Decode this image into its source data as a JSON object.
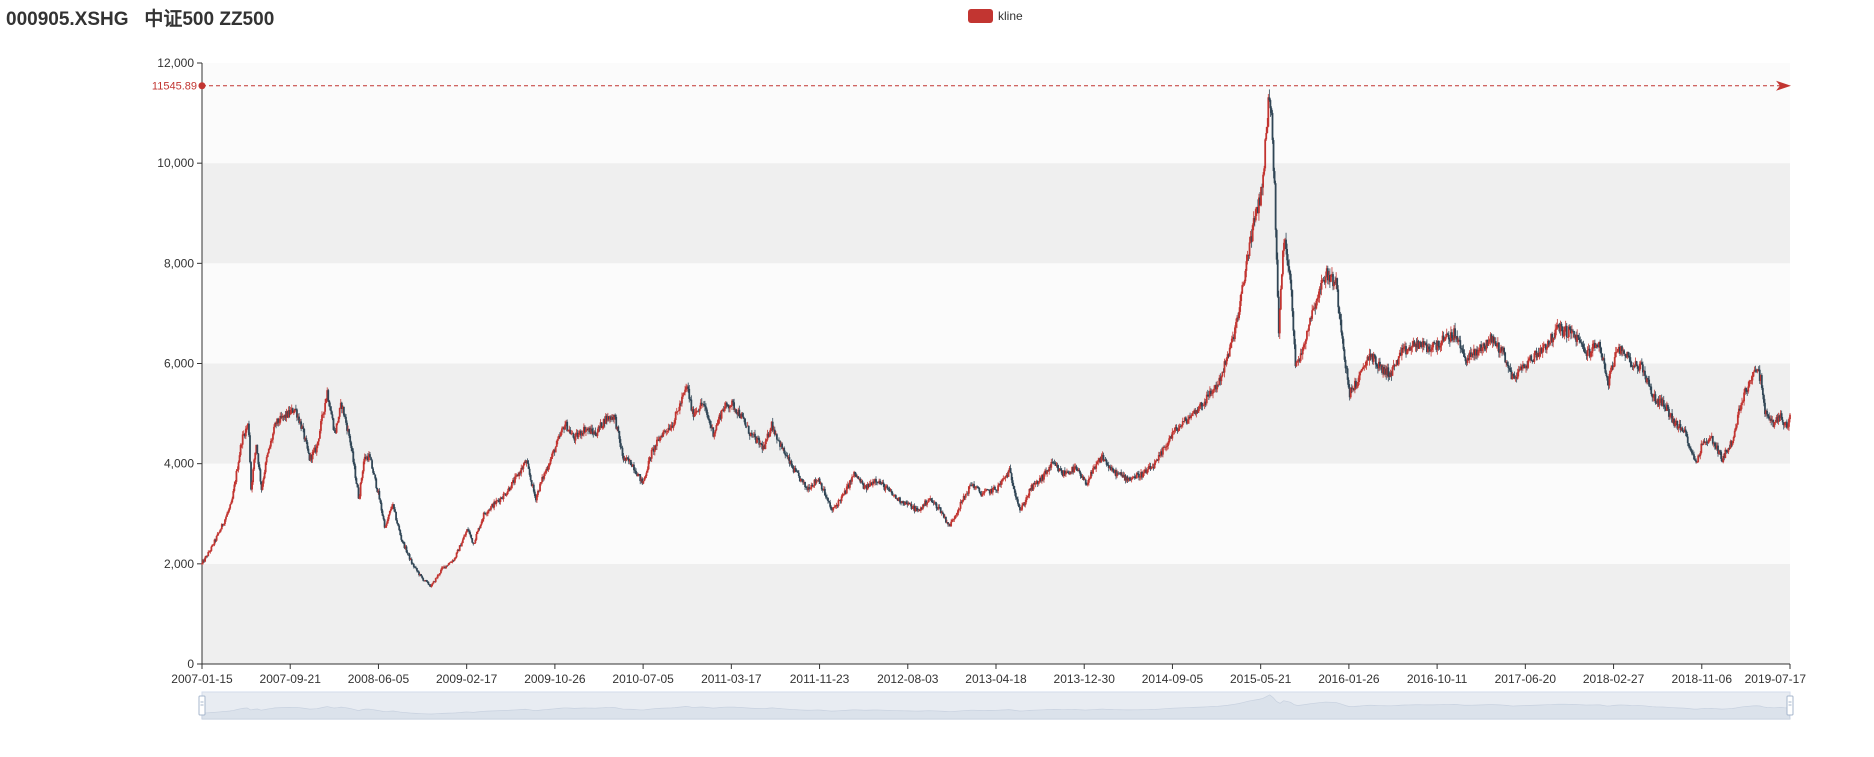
{
  "chart_data": {
    "type": "candlestick",
    "title": "000905.XSHG   中证500 ZZ500",
    "legend": {
      "entries": [
        "kline"
      ],
      "position": "top-center"
    },
    "ylim": [
      0,
      12000
    ],
    "y_ticks": [
      0,
      2000,
      4000,
      6000,
      8000,
      10000,
      12000
    ],
    "y_tick_labels": [
      "0",
      "2,000",
      "4,000",
      "6,000",
      "8,000",
      "10,000",
      "12,000"
    ],
    "x_range": [
      "2007-01-15",
      "2019-07-17"
    ],
    "x_tick_labels": [
      "2007-01-15",
      "2007-09-21",
      "2008-06-05",
      "2009-02-17",
      "2009-10-26",
      "2010-07-05",
      "2011-03-17",
      "2011-11-23",
      "2012-08-03",
      "2013-04-18",
      "2013-12-30",
      "2014-09-05",
      "2015-05-21",
      "2016-01-26",
      "2016-10-11",
      "2017-06-20",
      "2018-02-27",
      "2018-11-06",
      "2019-07-17"
    ],
    "max_markline": {
      "value": 11545.89,
      "label": "11545.89"
    },
    "grid": "horizontal-bands",
    "colors": {
      "up": "#c23531",
      "down": "#314656",
      "band": "#efefef",
      "markline": "#c23531",
      "slider_fill": "#d6dde8",
      "slider_handle": "#a7b7cc"
    },
    "datazoom": {
      "type": "slider",
      "range": [
        "2007-01-15",
        "2019-07-17"
      ]
    },
    "close_series": [
      [
        "2007-01-15",
        2000
      ],
      [
        "2007-02-10",
        2300
      ],
      [
        "2007-03-10",
        2700
      ],
      [
        "2007-04-10",
        3200
      ],
      [
        "2007-05-10",
        4500
      ],
      [
        "2007-05-29",
        4800
      ],
      [
        "2007-06-05",
        3500
      ],
      [
        "2007-06-20",
        4400
      ],
      [
        "2007-07-05",
        3500
      ],
      [
        "2007-07-20",
        4100
      ],
      [
        "2007-08-15",
        4800
      ],
      [
        "2007-09-21",
        5000
      ],
      [
        "2007-10-10",
        5100
      ],
      [
        "2007-10-30",
        4700
      ],
      [
        "2007-11-20",
        4100
      ],
      [
        "2007-12-10",
        4300
      ],
      [
        "2008-01-10",
        5450
      ],
      [
        "2008-02-01",
        4600
      ],
      [
        "2008-02-20",
        5200
      ],
      [
        "2008-03-15",
        4500
      ],
      [
        "2008-04-10",
        3300
      ],
      [
        "2008-04-25",
        4100
      ],
      [
        "2008-05-10",
        4150
      ],
      [
        "2008-06-05",
        3400
      ],
      [
        "2008-06-25",
        2700
      ],
      [
        "2008-07-15",
        3200
      ],
      [
        "2008-08-10",
        2500
      ],
      [
        "2008-09-10",
        2000
      ],
      [
        "2008-10-10",
        1700
      ],
      [
        "2008-11-04",
        1550
      ],
      [
        "2008-12-05",
        1900
      ],
      [
        "2009-01-10",
        2100
      ],
      [
        "2009-02-17",
        2700
      ],
      [
        "2009-03-05",
        2400
      ],
      [
        "2009-04-05",
        3000
      ],
      [
        "2009-05-05",
        3200
      ],
      [
        "2009-06-05",
        3400
      ],
      [
        "2009-07-05",
        3700
      ],
      [
        "2009-08-04",
        4050
      ],
      [
        "2009-08-31",
        3300
      ],
      [
        "2009-09-20",
        3700
      ],
      [
        "2009-10-26",
        4300
      ],
      [
        "2009-11-24",
        4800
      ],
      [
        "2009-12-20",
        4500
      ],
      [
        "2010-01-20",
        4700
      ],
      [
        "2010-02-20",
        4600
      ],
      [
        "2010-03-20",
        4900
      ],
      [
        "2010-04-15",
        4950
      ],
      [
        "2010-05-10",
        4100
      ],
      [
        "2010-06-05",
        4000
      ],
      [
        "2010-07-05",
        3600
      ],
      [
        "2010-07-30",
        4200
      ],
      [
        "2010-08-30",
        4600
      ],
      [
        "2010-09-30",
        4800
      ],
      [
        "2010-11-10",
        5550
      ],
      [
        "2010-11-25",
        5000
      ],
      [
        "2010-12-25",
        5200
      ],
      [
        "2011-01-25",
        4600
      ],
      [
        "2011-02-20",
        5100
      ],
      [
        "2011-03-17",
        5200
      ],
      [
        "2011-04-10",
        5000
      ],
      [
        "2011-05-10",
        4600
      ],
      [
        "2011-06-20",
        4300
      ],
      [
        "2011-07-10",
        4800
      ],
      [
        "2011-08-10",
        4300
      ],
      [
        "2011-09-10",
        3900
      ],
      [
        "2011-10-20",
        3500
      ],
      [
        "2011-11-23",
        3700
      ],
      [
        "2011-12-31",
        3050
      ],
      [
        "2012-02-05",
        3400
      ],
      [
        "2012-03-05",
        3800
      ],
      [
        "2012-04-05",
        3500
      ],
      [
        "2012-05-05",
        3700
      ],
      [
        "2012-06-05",
        3500
      ],
      [
        "2012-07-05",
        3300
      ],
      [
        "2012-08-03",
        3200
      ],
      [
        "2012-09-05",
        3050
      ],
      [
        "2012-10-05",
        3300
      ],
      [
        "2012-11-05",
        3100
      ],
      [
        "2012-12-03",
        2750
      ],
      [
        "2013-01-05",
        3200
      ],
      [
        "2013-02-05",
        3600
      ],
      [
        "2013-03-05",
        3400
      ],
      [
        "2013-04-18",
        3500
      ],
      [
        "2013-05-25",
        3850
      ],
      [
        "2013-06-25",
        3050
      ],
      [
        "2013-07-25",
        3500
      ],
      [
        "2013-08-25",
        3700
      ],
      [
        "2013-09-25",
        4000
      ],
      [
        "2013-10-25",
        3800
      ],
      [
        "2013-12-01",
        3900
      ],
      [
        "2013-12-30",
        3600
      ],
      [
        "2014-02-15",
        4150
      ],
      [
        "2014-03-15",
        3850
      ],
      [
        "2014-05-01",
        3700
      ],
      [
        "2014-06-15",
        3800
      ],
      [
        "2014-07-20",
        4000
      ],
      [
        "2014-09-05",
        4600
      ],
      [
        "2014-10-20",
        4900
      ],
      [
        "2014-12-01",
        5200
      ],
      [
        "2015-01-15",
        5600
      ],
      [
        "2015-02-15",
        6200
      ],
      [
        "2015-03-15",
        7000
      ],
      [
        "2015-04-15",
        8400
      ],
      [
        "2015-05-21",
        9500
      ],
      [
        "2015-06-12",
        11545.89
      ],
      [
        "2015-06-26",
        9500
      ],
      [
        "2015-07-08",
        6600
      ],
      [
        "2015-07-22",
        8500
      ],
      [
        "2015-08-10",
        7800
      ],
      [
        "2015-08-26",
        5900
      ],
      [
        "2015-09-15",
        6300
      ],
      [
        "2015-10-10",
        7000
      ],
      [
        "2015-11-20",
        7800
      ],
      [
        "2015-12-20",
        7600
      ],
      [
        "2016-01-26",
        5400
      ],
      [
        "2016-02-25",
        5700
      ],
      [
        "2016-03-25",
        6200
      ],
      [
        "2016-04-25",
        5900
      ],
      [
        "2016-05-25",
        5800
      ],
      [
        "2016-06-25",
        6200
      ],
      [
        "2016-08-10",
        6400
      ],
      [
        "2016-09-10",
        6300
      ],
      [
        "2016-10-11",
        6400
      ],
      [
        "2016-11-25",
        6600
      ],
      [
        "2016-12-25",
        6100
      ],
      [
        "2017-01-25",
        6200
      ],
      [
        "2017-03-10",
        6500
      ],
      [
        "2017-04-15",
        6200
      ],
      [
        "2017-05-10",
        5700
      ],
      [
        "2017-06-20",
        6000
      ],
      [
        "2017-07-20",
        6200
      ],
      [
        "2017-09-01",
        6500
      ],
      [
        "2017-09-15",
        6700
      ],
      [
        "2017-11-01",
        6600
      ],
      [
        "2017-12-10",
        6200
      ],
      [
        "2018-01-15",
        6400
      ],
      [
        "2018-02-09",
        5600
      ],
      [
        "2018-02-27",
        6100
      ],
      [
        "2018-03-20",
        6300
      ],
      [
        "2018-04-20",
        6000
      ],
      [
        "2018-05-20",
        5900
      ],
      [
        "2018-06-20",
        5300
      ],
      [
        "2018-07-20",
        5200
      ],
      [
        "2018-08-20",
        4800
      ],
      [
        "2018-09-20",
        4600
      ],
      [
        "2018-10-19",
        4000
      ],
      [
        "2018-11-06",
        4400
      ],
      [
        "2018-12-05",
        4500
      ],
      [
        "2019-01-03",
        4100
      ],
      [
        "2019-02-05",
        4500
      ],
      [
        "2019-02-25",
        5200
      ],
      [
        "2019-03-20",
        5600
      ],
      [
        "2019-04-08",
        5900
      ],
      [
        "2019-04-25",
        5700
      ],
      [
        "2019-05-06",
        5000
      ],
      [
        "2019-06-01",
        4800
      ],
      [
        "2019-06-20",
        4950
      ],
      [
        "2019-07-10",
        4700
      ],
      [
        "2019-07-17",
        4900
      ]
    ]
  }
}
